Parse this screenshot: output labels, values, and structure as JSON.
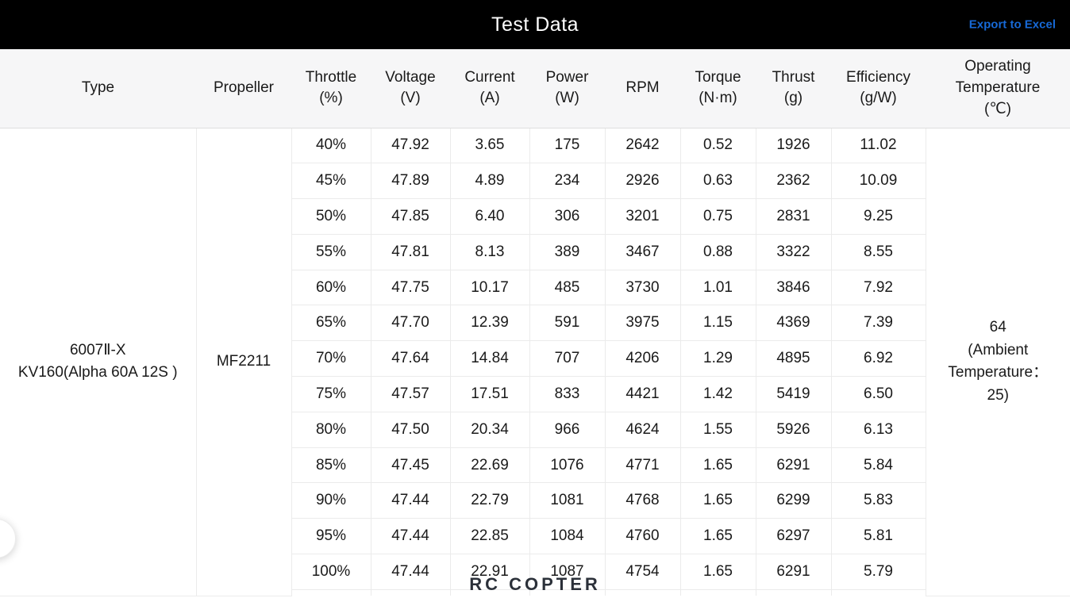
{
  "header": {
    "title": "Test Data",
    "export_label": "Export to Excel"
  },
  "table": {
    "columns": [
      "Type",
      "Propeller",
      "Throttle\n(%)",
      "Voltage\n(V)",
      "Current\n(A)",
      "Power\n(W)",
      "RPM",
      "Torque\n(N·m)",
      "Thrust\n(g)",
      "Efficiency\n(g/W)",
      "Operating\nTemperature\n(℃)"
    ],
    "type_value": "6007Ⅱ-X\nKV160(Alpha 60A 12S )",
    "propeller_value": "MF2211",
    "operating_temp_value": "64\n(Ambient\nTemperature：\n25)",
    "rows": [
      {
        "throttle": "40%",
        "voltage": "47.92",
        "current": "3.65",
        "power": "175",
        "rpm": "2642",
        "torque": "0.52",
        "thrust": "1926",
        "efficiency": "11.02"
      },
      {
        "throttle": "45%",
        "voltage": "47.89",
        "current": "4.89",
        "power": "234",
        "rpm": "2926",
        "torque": "0.63",
        "thrust": "2362",
        "efficiency": "10.09"
      },
      {
        "throttle": "50%",
        "voltage": "47.85",
        "current": "6.40",
        "power": "306",
        "rpm": "3201",
        "torque": "0.75",
        "thrust": "2831",
        "efficiency": "9.25"
      },
      {
        "throttle": "55%",
        "voltage": "47.81",
        "current": "8.13",
        "power": "389",
        "rpm": "3467",
        "torque": "0.88",
        "thrust": "3322",
        "efficiency": "8.55"
      },
      {
        "throttle": "60%",
        "voltage": "47.75",
        "current": "10.17",
        "power": "485",
        "rpm": "3730",
        "torque": "1.01",
        "thrust": "3846",
        "efficiency": "7.92"
      },
      {
        "throttle": "65%",
        "voltage": "47.70",
        "current": "12.39",
        "power": "591",
        "rpm": "3975",
        "torque": "1.15",
        "thrust": "4369",
        "efficiency": "7.39"
      },
      {
        "throttle": "70%",
        "voltage": "47.64",
        "current": "14.84",
        "power": "707",
        "rpm": "4206",
        "torque": "1.29",
        "thrust": "4895",
        "efficiency": "6.92"
      },
      {
        "throttle": "75%",
        "voltage": "47.57",
        "current": "17.51",
        "power": "833",
        "rpm": "4421",
        "torque": "1.42",
        "thrust": "5419",
        "efficiency": "6.50"
      },
      {
        "throttle": "80%",
        "voltage": "47.50",
        "current": "20.34",
        "power": "966",
        "rpm": "4624",
        "torque": "1.55",
        "thrust": "5926",
        "efficiency": "6.13"
      },
      {
        "throttle": "85%",
        "voltage": "47.45",
        "current": "22.69",
        "power": "1076",
        "rpm": "4771",
        "torque": "1.65",
        "thrust": "6291",
        "efficiency": "5.84"
      },
      {
        "throttle": "90%",
        "voltage": "47.44",
        "current": "22.79",
        "power": "1081",
        "rpm": "4768",
        "torque": "1.65",
        "thrust": "6299",
        "efficiency": "5.83"
      },
      {
        "throttle": "95%",
        "voltage": "47.44",
        "current": "22.85",
        "power": "1084",
        "rpm": "4760",
        "torque": "1.65",
        "thrust": "6297",
        "efficiency": "5.81"
      },
      {
        "throttle": "100%",
        "voltage": "47.44",
        "current": "22.91",
        "power": "1087",
        "rpm": "4754",
        "torque": "1.65",
        "thrust": "6291",
        "efficiency": "5.79"
      }
    ]
  },
  "watermark": {
    "text": "RC COPTER"
  },
  "accent_colors": {
    "topbar_bg": "#000000",
    "link_blue": "#1769d6",
    "header_row_bg": "#f6f6f7",
    "border": "#ebebeb"
  }
}
